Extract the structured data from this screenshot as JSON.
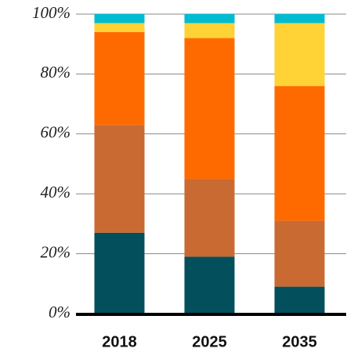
{
  "chart_data": {
    "type": "stacked_bar",
    "categories": [
      "2018",
      "2025",
      "2035"
    ],
    "series": [
      {
        "color": "#03505c",
        "values": [
          27,
          19,
          9
        ]
      },
      {
        "color": "#c96a33",
        "values": [
          36,
          26,
          22
        ]
      },
      {
        "color": "#ff6a00",
        "values": [
          31,
          47,
          45
        ]
      },
      {
        "color": "#ffd236",
        "values": [
          3,
          5,
          21
        ]
      },
      {
        "color": "#00bcd1",
        "values": [
          3,
          3,
          3
        ]
      }
    ],
    "ylim": [
      0,
      100
    ],
    "yticks": [
      {
        "value": 0,
        "label": "0%"
      },
      {
        "value": 20,
        "label": "20%"
      },
      {
        "value": 40,
        "label": "40%"
      },
      {
        "value": 60,
        "label": "60%"
      },
      {
        "value": 80,
        "label": "80%"
      },
      {
        "value": 100,
        "label": "100%"
      }
    ],
    "grid": true
  }
}
